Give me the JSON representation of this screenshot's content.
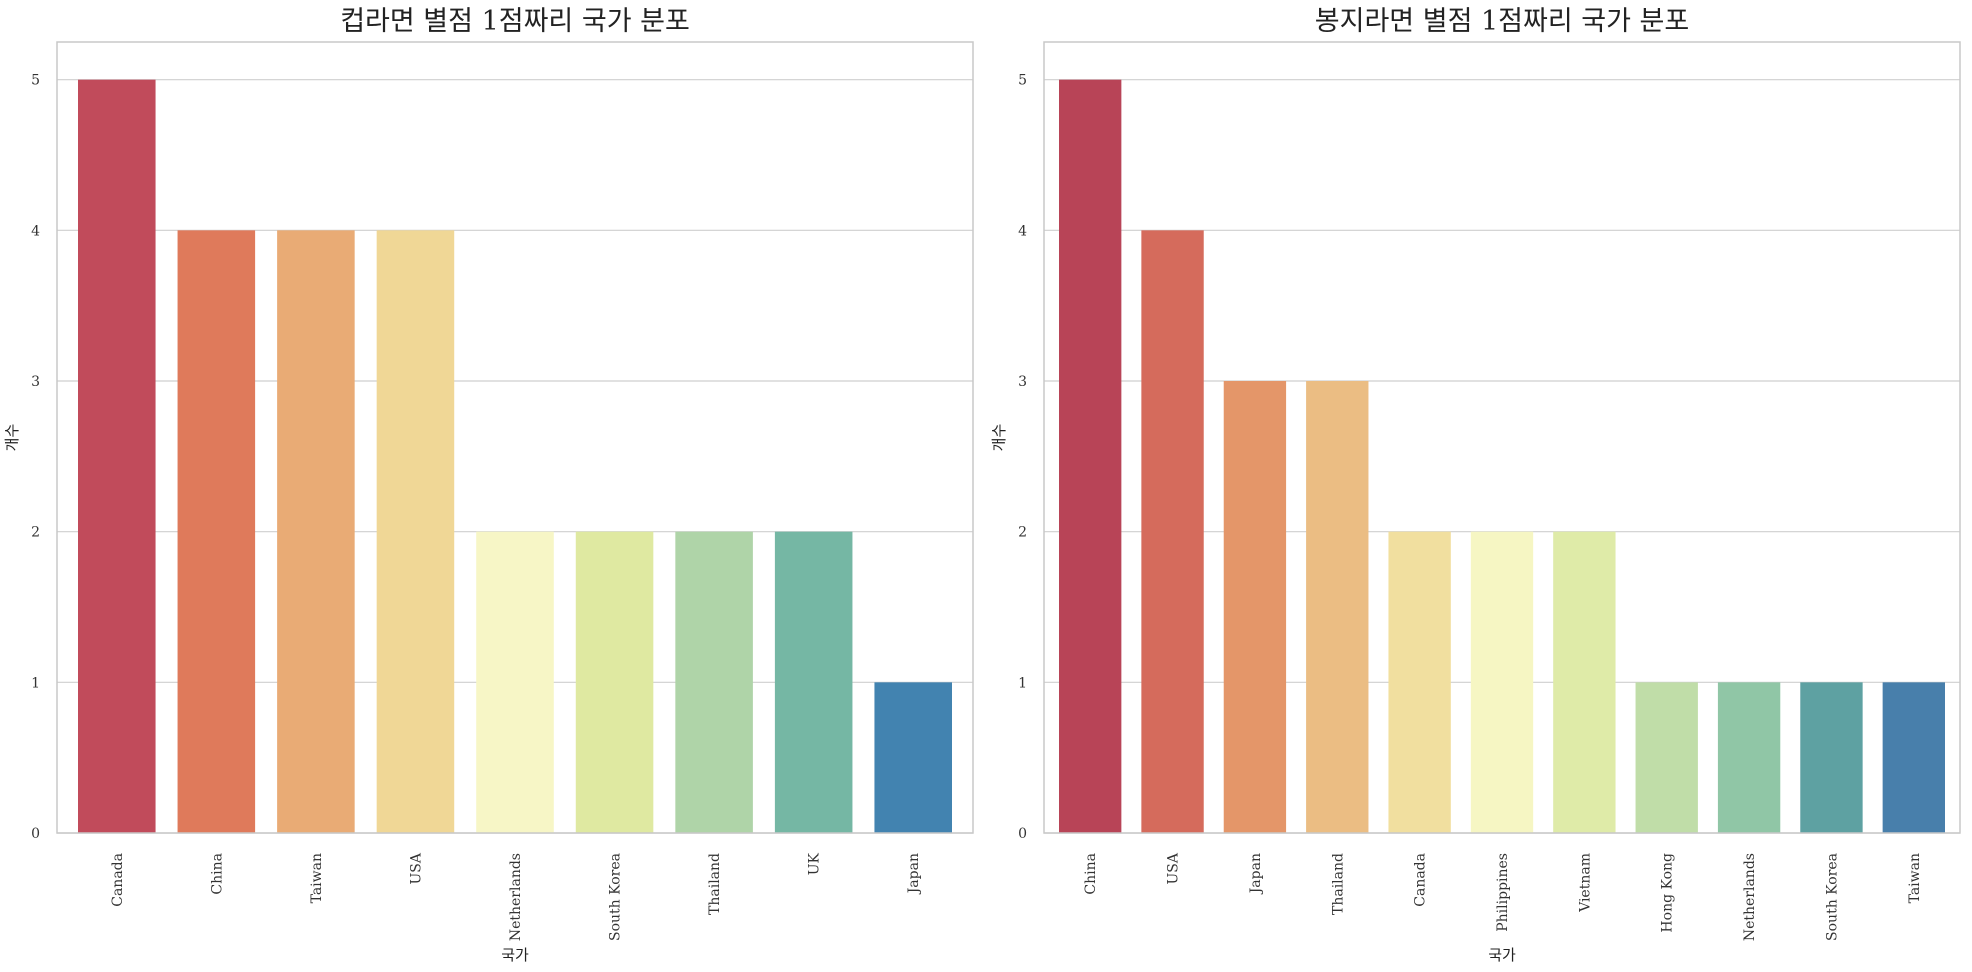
{
  "chart_data": [
    {
      "type": "bar",
      "title": "컵라면 별점 1점짜리 국가 분포",
      "xlabel": "국가",
      "ylabel": "개수",
      "ylim": [
        0,
        5.25
      ],
      "yticks": [
        0,
        1,
        2,
        3,
        4,
        5
      ],
      "grid": true,
      "categories": [
        "Canada",
        "China",
        "Taiwan",
        "USA",
        "Netherlands",
        "South Korea",
        "Thailand",
        "UK",
        "Japan"
      ],
      "values": [
        5,
        4,
        4,
        4,
        2,
        2,
        2,
        2,
        1
      ],
      "colors": [
        "#c14b5b",
        "#df7a5b",
        "#e9ab75",
        "#f0d796",
        "#f7f6c6",
        "#dfe9a1",
        "#afd4a8",
        "#75b7a4",
        "#4283b0"
      ]
    },
    {
      "type": "bar",
      "title": "봉지라면 별점 1점짜리 국가 분포",
      "xlabel": "국가",
      "ylabel": "개수",
      "ylim": [
        0,
        5.25
      ],
      "yticks": [
        0,
        1,
        2,
        3,
        4,
        5
      ],
      "grid": true,
      "categories": [
        "China",
        "USA",
        "Japan",
        "Thailand",
        "Canada",
        "Philippines",
        "Vietnam",
        "Hong Kong",
        "Netherlands",
        "South Korea",
        "Taiwan"
      ],
      "values": [
        5,
        4,
        3,
        3,
        2,
        2,
        2,
        1,
        1,
        1,
        1
      ],
      "colors": [
        "#b84457",
        "#d56b5c",
        "#e49669",
        "#ebbd83",
        "#f1df9f",
        "#f6f6c3",
        "#dfeba8",
        "#c0dda8",
        "#90c6a6",
        "#5ea1a2",
        "#487fab"
      ]
    }
  ]
}
